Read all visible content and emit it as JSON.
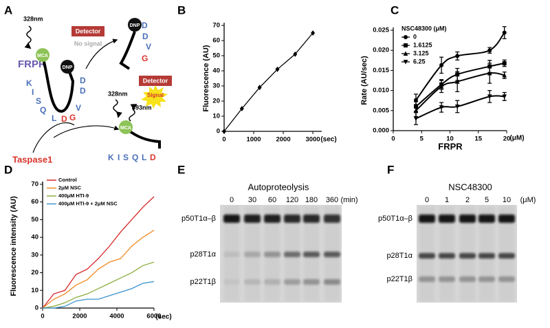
{
  "diagram": {
    "panel": "A",
    "excitation_1": "328nm",
    "detector_1": "Detector",
    "no_signal": "No signal",
    "substrate": "FRPR",
    "mca_1": "MCA",
    "dnp_1": "DNP",
    "sequence_left": [
      "K",
      "I",
      "S",
      "Q",
      "L",
      "D",
      "G"
    ],
    "sequence_right": [
      "D",
      "D",
      "V"
    ],
    "enzyme": "Taspase1",
    "dnp_2": "DNP",
    "product_dnp": [
      "D",
      "D",
      "V",
      "G"
    ],
    "detector_2": "Detector",
    "signal": "Signal",
    "excitation_2": "328nm",
    "emission": "393nm",
    "mca_2": "MCA",
    "product_mca": [
      "K",
      "I",
      "S",
      "Q",
      "L",
      "D"
    ]
  },
  "chart_data": [
    {
      "type": "line",
      "panel": "B",
      "y_label": "Fluorescence (AU)",
      "x_unit": "(sec)",
      "x": [
        0,
        600,
        1200,
        1800,
        2400,
        3000
      ],
      "values": [
        0,
        15,
        29,
        41,
        51,
        65
      ],
      "color": "#000000",
      "marker": "diamond",
      "xlim": [
        0,
        3300
      ],
      "xticks": [
        0,
        1000,
        2000,
        3000
      ],
      "ylim": [
        0,
        70
      ],
      "yticks": [
        0,
        10,
        20,
        30,
        40,
        50,
        60,
        70
      ]
    },
    {
      "type": "line",
      "panel": "C",
      "smooth": true,
      "x_label": "FRPR",
      "x_unit": "(μM)",
      "y_label": "Rate (AU/sec)",
      "legend_title": "NSC48300 (μM)",
      "x": [
        4,
        8.5,
        11.3,
        17,
        19.6
      ],
      "series": [
        {
          "name": "0",
          "color": "#000000",
          "marker": "circle",
          "values": [
            0.0076,
            0.0163,
            0.0186,
            0.02,
            0.0244
          ],
          "errors": [
            0.0015,
            0.002,
            0.001,
            0.0007,
            0.0015
          ]
        },
        {
          "name": "1.6125",
          "color": "#000000",
          "marker": "square",
          "values": [
            0.006,
            0.0115,
            0.014,
            0.016,
            0.0168
          ],
          "errors": [
            0.0012,
            0.0012,
            0.0015,
            0.0015,
            0.0008
          ]
        },
        {
          "name": "3.125",
          "color": "#000000",
          "marker": "triangle",
          "values": [
            0.005,
            0.011,
            0.0122,
            0.0143,
            0.0138
          ],
          "errors": [
            0.0015,
            0.0015,
            0.0025,
            0.0025,
            0.0008
          ]
        },
        {
          "name": "6.25",
          "color": "#000000",
          "marker": "triangle-down",
          "values": [
            0.003,
            0.0058,
            0.006,
            0.0085,
            0.0085
          ],
          "errors": [
            0.0015,
            0.0012,
            0.0015,
            0.0015,
            0.001
          ]
        }
      ],
      "xlim": [
        0,
        20
      ],
      "xticks": [
        0,
        5,
        10,
        15,
        20
      ],
      "ylim": [
        0,
        0.025
      ],
      "yticks": [
        {
          "value": 0,
          "label": "0.000"
        },
        {
          "value": 0.005,
          "label": "0.005"
        },
        {
          "value": 0.01,
          "label": "0.010"
        },
        {
          "value": 0.015,
          "label": "0.015"
        },
        {
          "value": 0.02,
          "label": "0.020"
        },
        {
          "value": 0.025,
          "label": "0.025"
        }
      ]
    },
    {
      "type": "line",
      "panel": "D",
      "y_label": "Fluorescence intensity (AU)",
      "x_unit": "(sec)",
      "x": [
        0,
        600,
        1200,
        1800,
        2400,
        3000,
        3600,
        4200,
        4800,
        5400,
        6000
      ],
      "series": [
        {
          "name": "Control",
          "color": "#d62728",
          "values": [
            0,
            8,
            10,
            19,
            22,
            28,
            35,
            43,
            50,
            57,
            63
          ]
        },
        {
          "name": "2μM NSC",
          "color": "#f08a24",
          "values": [
            0,
            5,
            8,
            13,
            16,
            22,
            26,
            28,
            35,
            40,
            44
          ]
        },
        {
          "name": "400μM HTI-9",
          "color": "#8cad3f",
          "values": [
            0,
            1,
            3,
            6,
            8,
            11,
            14,
            17,
            20,
            24,
            26
          ]
        },
        {
          "name": "400μM HTI-9 + 2μM NSC",
          "color": "#3a93d0",
          "values": [
            0,
            0,
            1,
            4,
            5,
            5,
            7,
            9,
            11,
            14,
            15
          ]
        }
      ],
      "xlim": [
        0,
        6000
      ],
      "xticks": [
        0,
        2000,
        4000,
        6000
      ],
      "ylim": [
        0,
        70
      ],
      "yticks": [
        0,
        10,
        20,
        30,
        40,
        50,
        60,
        70
      ]
    }
  ],
  "gels": [
    {
      "panel": "E",
      "title": "Autoproteolysis",
      "lanes": [
        "0",
        "30",
        "60",
        "120",
        "180",
        "360"
      ],
      "lane_unit": "(min)",
      "bands": [
        "p50T1α–β",
        "p28T1α",
        "p22T1β"
      ]
    },
    {
      "panel": "F",
      "title": "NSC48300",
      "lanes": [
        "0",
        "1",
        "2",
        "5",
        "10"
      ],
      "lane_unit": "(μM)",
      "bands": [
        "p50T1α–β",
        "p28T1α",
        "p22T1β"
      ]
    }
  ]
}
